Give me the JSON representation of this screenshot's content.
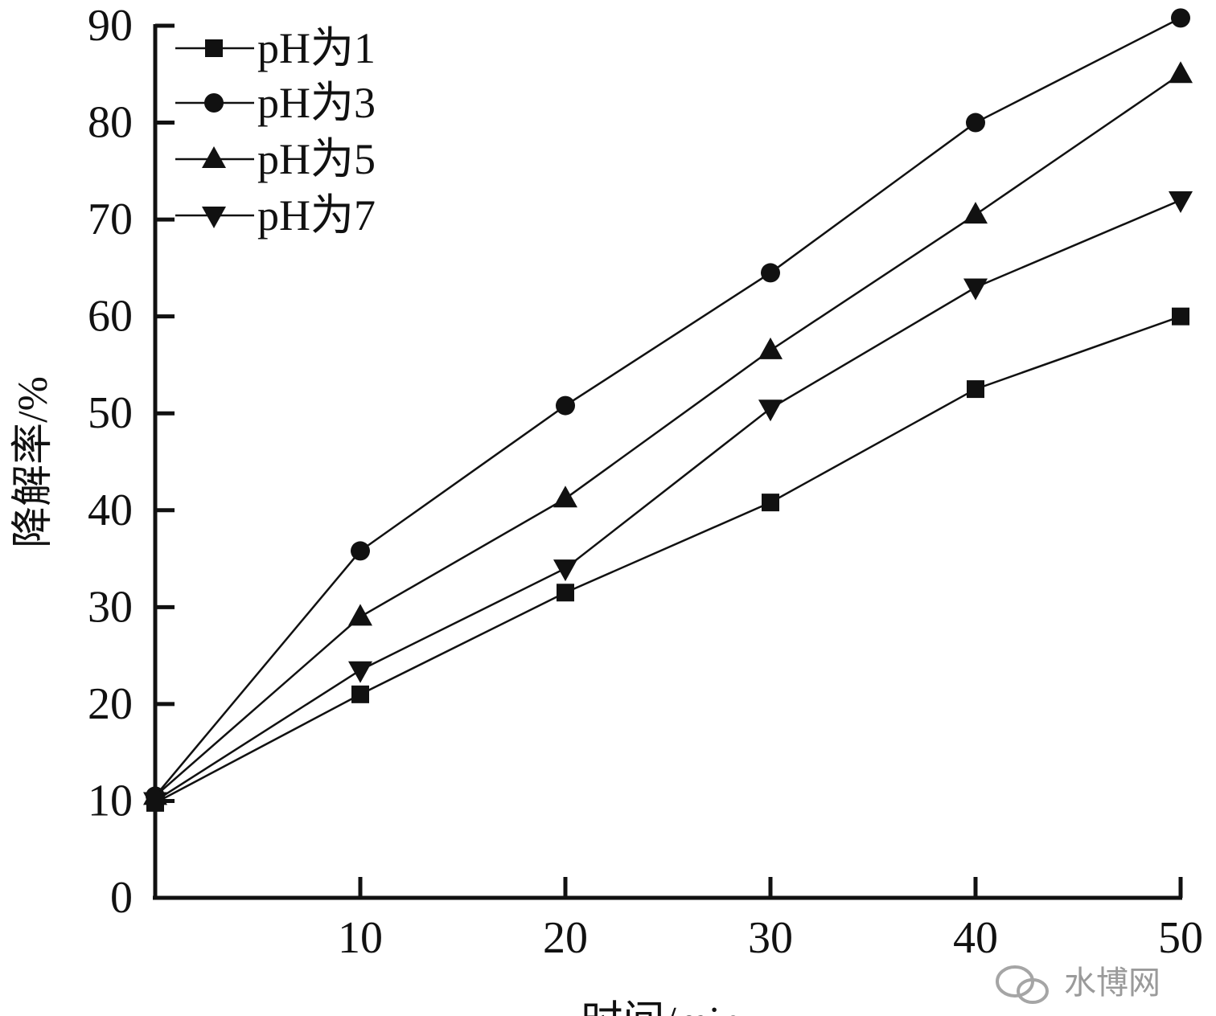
{
  "chart_data": {
    "type": "line",
    "xlabel": "时间/min",
    "ylabel": "降解率/%",
    "xlim": [
      0,
      50
    ],
    "ylim": [
      0,
      90
    ],
    "x": [
      0,
      10,
      20,
      30,
      40,
      50
    ],
    "x_ticks": [
      10,
      20,
      30,
      40,
      50
    ],
    "y_ticks": [
      0,
      10,
      20,
      30,
      40,
      50,
      60,
      70,
      80,
      90
    ],
    "grid": false,
    "legend_position": "top-left",
    "series": [
      {
        "name": "pH为1",
        "marker": "square",
        "values": [
          9.8,
          21.0,
          31.5,
          40.8,
          52.5,
          60.0
        ]
      },
      {
        "name": "pH为3",
        "marker": "circle",
        "values": [
          10.5,
          35.8,
          50.8,
          64.5,
          80.0,
          90.8
        ]
      },
      {
        "name": "pH为5",
        "marker": "triangle-up",
        "values": [
          10.5,
          29.0,
          41.2,
          56.5,
          70.5,
          85.0
        ]
      },
      {
        "name": "pH为7",
        "marker": "triangle-down",
        "values": [
          10.0,
          23.5,
          34.0,
          50.5,
          63.0,
          72.0
        ]
      }
    ]
  },
  "watermark": {
    "text": "水博网",
    "icon": "wechat-icon"
  }
}
